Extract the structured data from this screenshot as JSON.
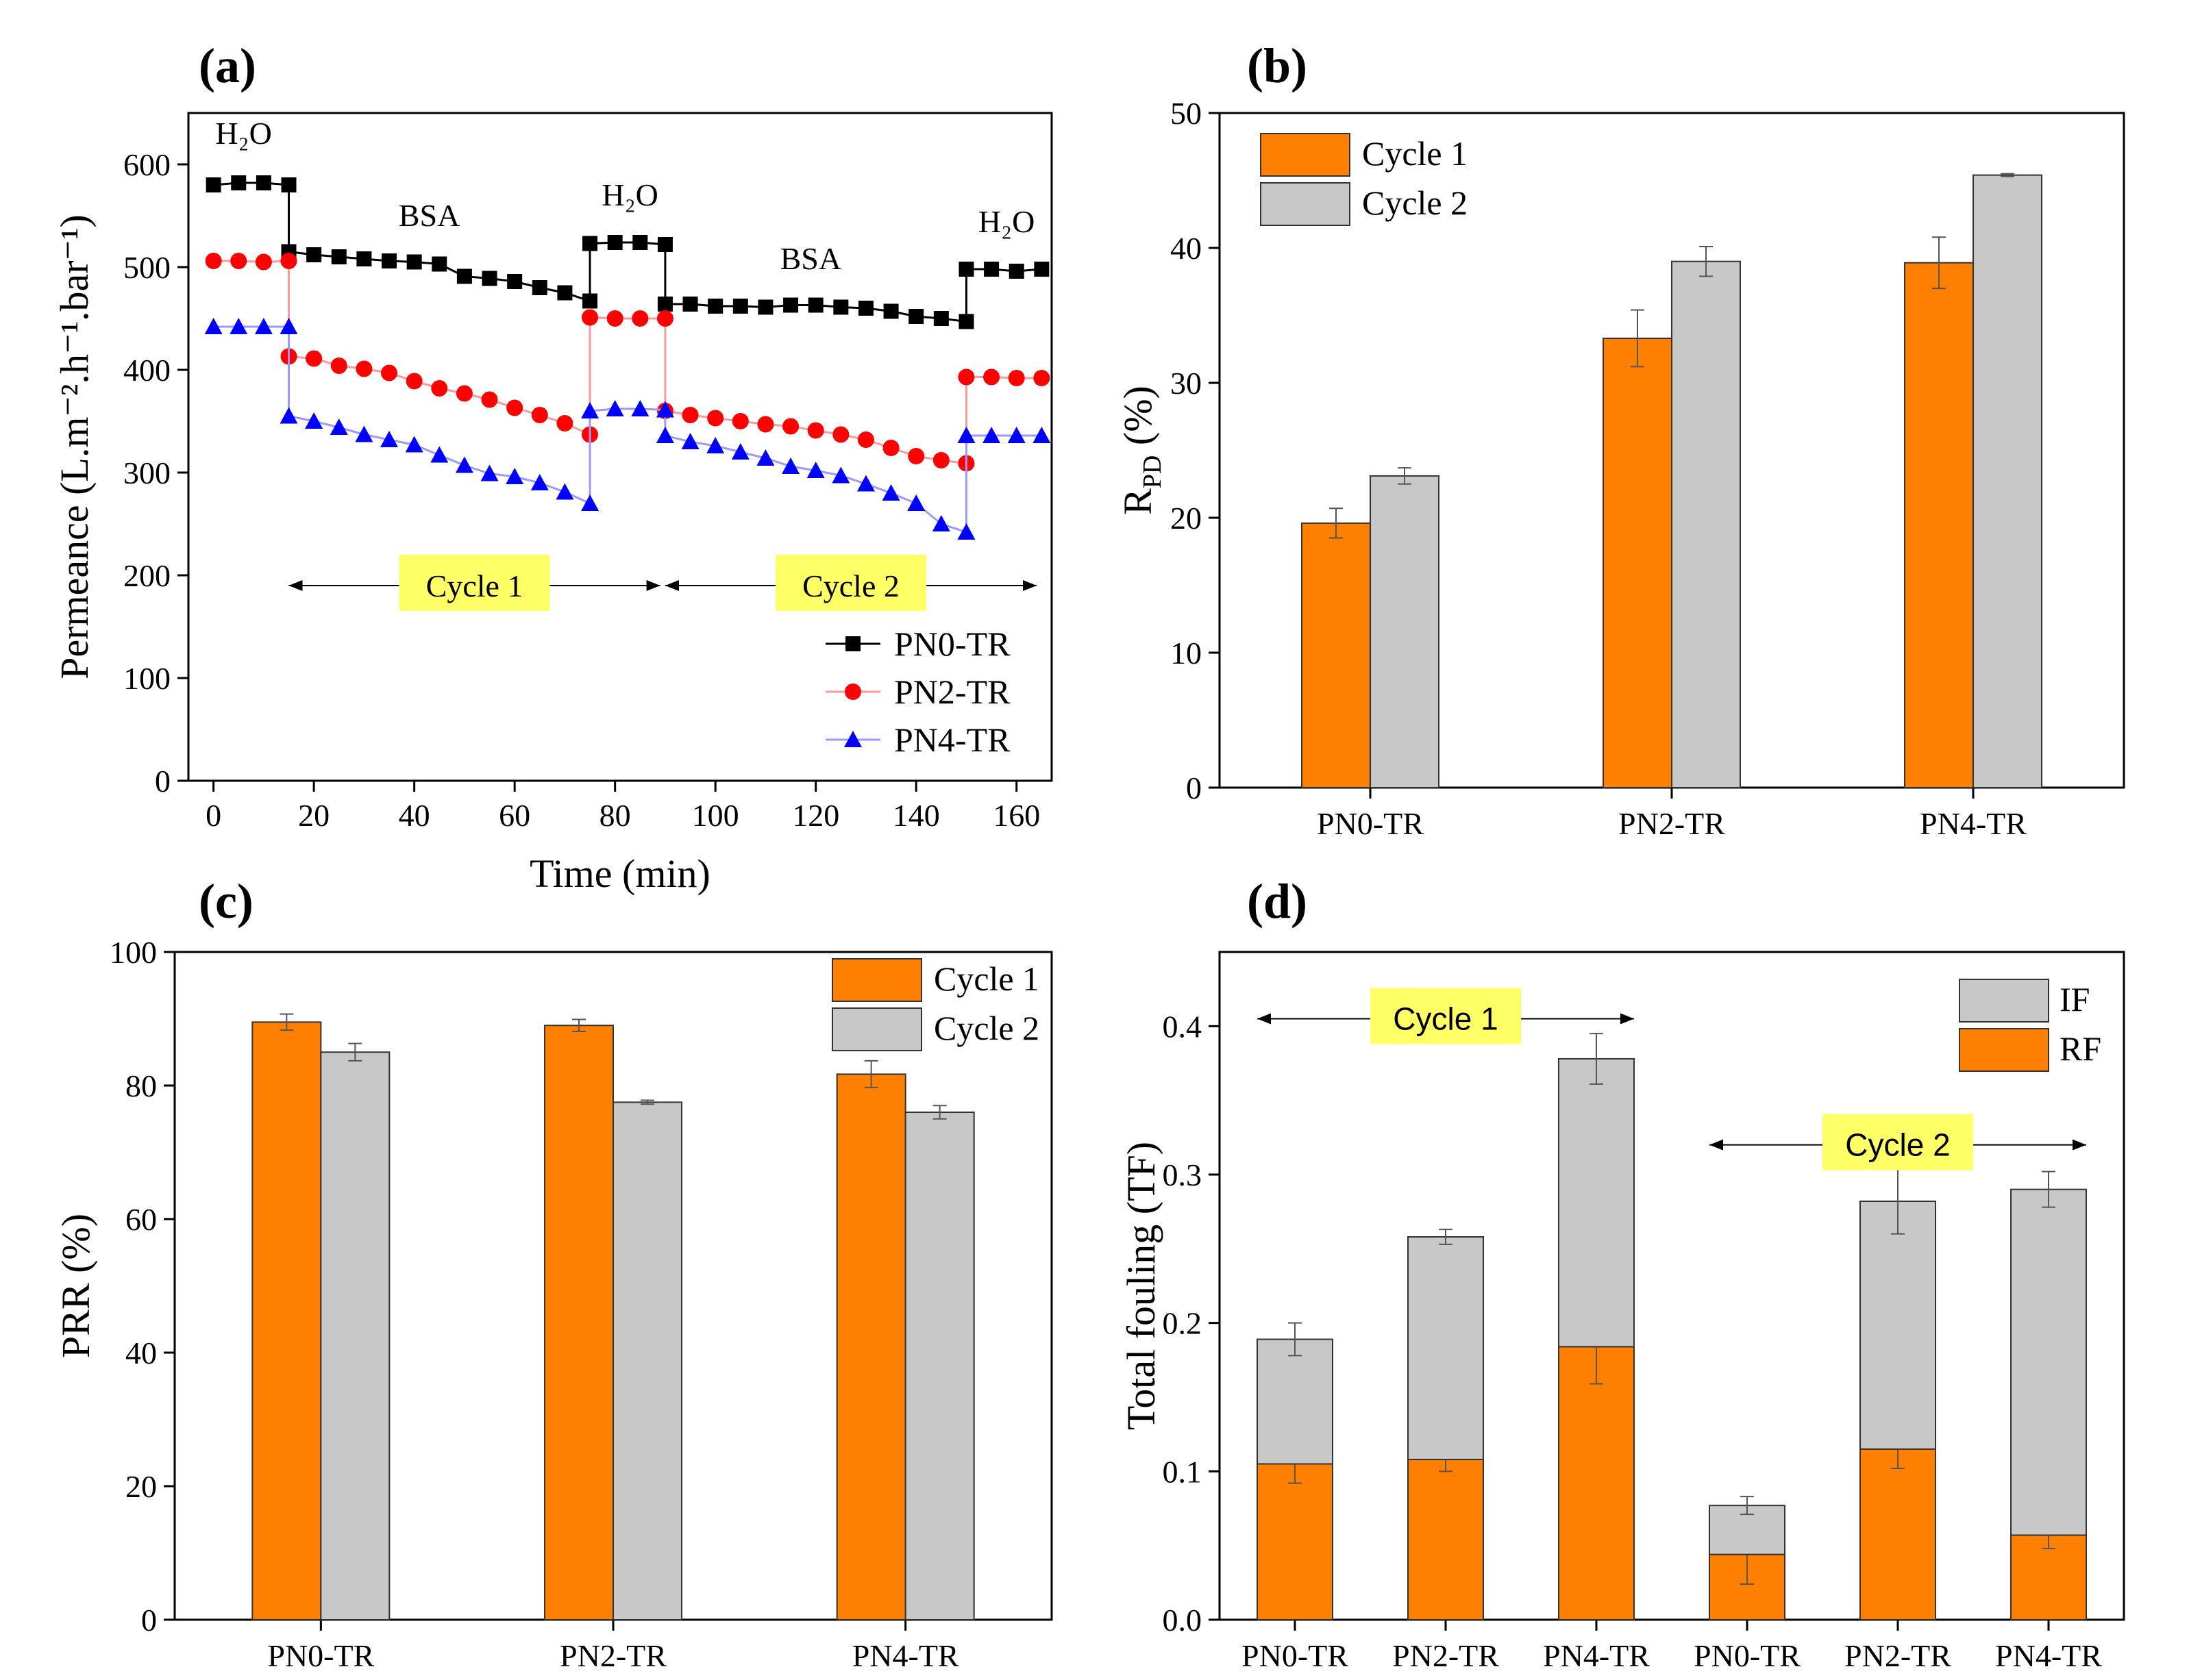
{
  "panel_letters": [
    "(a)",
    "(b)",
    "(c)",
    "(d)"
  ],
  "colors": {
    "orange": "#ff8000",
    "gray": "#c8c8c8",
    "black_series": "#000000",
    "red_series": "#ff0000",
    "blue_series": "#0000ff",
    "red_line": "#ff9999",
    "blue_line": "#9999ff",
    "highlight": "#ffff66"
  },
  "chart_data": [
    {
      "id": "a",
      "type": "line",
      "xlabel": "Time (min)",
      "ylabel": "Permeance (L.m⁻².h⁻¹.bar⁻¹)",
      "xlim": [
        -5,
        167
      ],
      "ylim": [
        0,
        650
      ],
      "xticks": [
        0,
        20,
        40,
        60,
        80,
        100,
        120,
        140,
        160
      ],
      "yticks": [
        0,
        100,
        200,
        300,
        400,
        500,
        600
      ],
      "annotations": [
        {
          "text": "H₂O",
          "x": 6,
          "y": 620
        },
        {
          "text": "BSA",
          "x": 43,
          "y": 540
        },
        {
          "text": "H₂O",
          "x": 83,
          "y": 560
        },
        {
          "text": "BSA",
          "x": 119,
          "y": 498
        },
        {
          "text": "H₂O",
          "x": 158,
          "y": 534
        }
      ],
      "cycle_arrows": [
        {
          "text": "Cycle 1",
          "x_start": 15,
          "x_end": 89,
          "y": 190
        },
        {
          "text": "Cycle 2",
          "x_start": 90,
          "x_end": 164,
          "y": 190
        }
      ],
      "legend_position": "bottom-right",
      "series": [
        {
          "name": "PN0-TR",
          "marker": "square",
          "color_key": "black_series",
          "line_key": "black_series",
          "x": [
            0,
            5,
            10,
            15,
            15,
            20,
            25,
            30,
            35,
            40,
            45,
            50,
            55,
            60,
            65,
            70,
            75,
            75,
            80,
            85,
            90,
            90,
            95,
            100,
            105,
            110,
            115,
            120,
            125,
            130,
            135,
            140,
            145,
            150,
            150,
            155,
            160,
            165
          ],
          "y": [
            580,
            582,
            582,
            580,
            515,
            512,
            510,
            508,
            506,
            505,
            503,
            491,
            489,
            486,
            480,
            475,
            467,
            523,
            524,
            524,
            522,
            464,
            464,
            462,
            462,
            461,
            463,
            463,
            461,
            460,
            457,
            452,
            450,
            447,
            498,
            498,
            496,
            498
          ]
        },
        {
          "name": "PN2-TR",
          "marker": "circle",
          "color_key": "red_series",
          "line_key": "red_line",
          "x": [
            0,
            5,
            10,
            15,
            15,
            20,
            25,
            30,
            35,
            40,
            45,
            50,
            55,
            60,
            65,
            70,
            75,
            75,
            80,
            85,
            90,
            90,
            95,
            100,
            105,
            110,
            115,
            120,
            125,
            130,
            135,
            140,
            145,
            150,
            150,
            155,
            160,
            165
          ],
          "y": [
            506,
            506,
            505,
            506,
            413,
            411,
            404,
            401,
            397,
            389,
            382,
            377,
            371,
            363,
            356,
            348,
            337,
            451,
            450,
            450,
            450,
            360,
            356,
            353,
            350,
            347,
            345,
            341,
            337,
            332,
            324,
            316,
            312,
            309,
            393,
            393,
            392,
            392
          ]
        },
        {
          "name": "PN4-TR",
          "marker": "triangle",
          "color_key": "blue_series",
          "line_key": "blue_line",
          "x": [
            0,
            5,
            10,
            15,
            15,
            20,
            25,
            30,
            35,
            40,
            45,
            50,
            55,
            60,
            65,
            70,
            75,
            75,
            80,
            85,
            90,
            90,
            95,
            100,
            105,
            110,
            115,
            120,
            125,
            130,
            135,
            140,
            145,
            150,
            150,
            155,
            160,
            165
          ],
          "y": [
            442,
            442,
            442,
            442,
            355,
            350,
            344,
            337,
            332,
            327,
            317,
            307,
            299,
            296,
            290,
            281,
            270,
            360,
            362,
            362,
            361,
            336,
            330,
            326,
            320,
            314,
            306,
            302,
            297,
            289,
            280,
            270,
            250,
            242,
            336,
            336,
            336,
            336
          ]
        }
      ]
    },
    {
      "id": "b",
      "type": "bar",
      "ylabel": "R",
      "ylabel_sub": "PD",
      "ylabel_suffix": " (%)",
      "categories": [
        "PN0-TR",
        "PN2-TR",
        "PN4-TR"
      ],
      "ylim": [
        0,
        50
      ],
      "yticks": [
        0,
        10,
        20,
        30,
        40,
        50
      ],
      "legend_position": "top-left",
      "series": [
        {
          "name": "Cycle 1",
          "color_key": "orange",
          "values": [
            19.6,
            33.3,
            38.9
          ],
          "errors": [
            1.1,
            2.1,
            1.9
          ]
        },
        {
          "name": "Cycle 2",
          "color_key": "gray",
          "values": [
            23.1,
            39.0,
            45.4
          ],
          "errors": [
            0.6,
            1.1,
            0.1
          ]
        }
      ]
    },
    {
      "id": "c",
      "type": "bar",
      "ylabel": "PRR (%)",
      "categories": [
        "PN0-TR",
        "PN2-TR",
        "PN4-TR"
      ],
      "ylim": [
        0,
        100
      ],
      "yticks": [
        0,
        20,
        40,
        60,
        80,
        100
      ],
      "legend_position": "top-right",
      "series": [
        {
          "name": "Cycle 1",
          "color_key": "orange",
          "values": [
            89.5,
            89.0,
            81.7
          ],
          "errors": [
            1.2,
            0.9,
            2.0
          ]
        },
        {
          "name": "Cycle 2",
          "color_key": "gray",
          "values": [
            85.0,
            77.5,
            76.0
          ],
          "errors": [
            1.3,
            0.3,
            1.0
          ]
        }
      ]
    },
    {
      "id": "d",
      "type": "bar",
      "stacked": true,
      "ylabel": "Total fouling (TF)",
      "categories": [
        "PN0-TR",
        "PN2-TR",
        "PN4-TR",
        "PN0-TR",
        "PN2-TR",
        "PN4-TR"
      ],
      "ylim": [
        0,
        0.45
      ],
      "yticks": [
        0.0,
        0.1,
        0.2,
        0.3,
        0.4
      ],
      "ytick_labels": [
        "0.0",
        "0.1",
        "0.2",
        "0.3",
        "0.4"
      ],
      "legend_position": "top-right",
      "cycle_arrows": [
        {
          "text": "Cycle 1",
          "from_index": 0,
          "to_index": 2,
          "y": 0.405
        },
        {
          "text": "Cycle 2",
          "from_index": 3,
          "to_index": 5,
          "y": 0.32
        }
      ],
      "series": [
        {
          "name": "RF",
          "color_key": "orange",
          "values": [
            0.105,
            0.108,
            0.184,
            0.044,
            0.115,
            0.057
          ],
          "errors": [
            0.013,
            0.008,
            0.025,
            0.02,
            0.013,
            0.009
          ]
        },
        {
          "name": "IF",
          "color_key": "gray",
          "values": [
            0.084,
            0.15,
            0.194,
            0.033,
            0.167,
            0.233
          ],
          "errors": [
            0.011,
            0.005,
            0.017,
            0.006,
            0.022,
            0.012
          ]
        }
      ],
      "totals": [
        0.189,
        0.258,
        0.378,
        0.077,
        0.282,
        0.29
      ],
      "legend_order": [
        "IF",
        "RF"
      ]
    }
  ]
}
